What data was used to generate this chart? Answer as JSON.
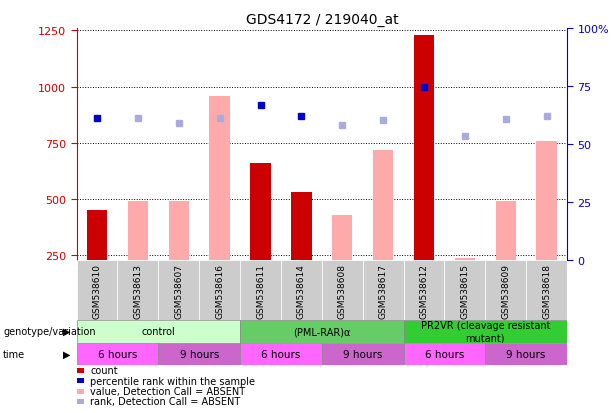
{
  "title": "GDS4172 / 219040_at",
  "samples": [
    "GSM538610",
    "GSM538613",
    "GSM538607",
    "GSM538616",
    "GSM538611",
    "GSM538614",
    "GSM538608",
    "GSM538617",
    "GSM538612",
    "GSM538615",
    "GSM538609",
    "GSM538618"
  ],
  "count_values": [
    450,
    null,
    null,
    null,
    660,
    530,
    null,
    null,
    1230,
    null,
    null,
    null
  ],
  "count_absent_values": [
    null,
    490,
    490,
    960,
    null,
    null,
    430,
    720,
    null,
    240,
    490,
    760
  ],
  "rank_present_values": [
    860,
    null,
    null,
    null,
    920,
    870,
    null,
    null,
    1000,
    null,
    null,
    null
  ],
  "rank_absent_values": [
    null,
    860,
    840,
    860,
    null,
    null,
    830,
    850,
    null,
    780,
    855,
    870
  ],
  "ylim_left": [
    230,
    1260
  ],
  "ylim_right": [
    0,
    100
  ],
  "left_ticks": [
    250,
    500,
    750,
    1000,
    1250
  ],
  "right_ticks": [
    0,
    25,
    50,
    75,
    100
  ],
  "right_tick_labels": [
    "0",
    "25",
    "50",
    "75",
    "100%"
  ],
  "genotype_groups": [
    {
      "label": "control",
      "color": "#ccffcc",
      "start": 0,
      "end": 3
    },
    {
      "label": "(PML-RAR)α",
      "color": "#66cc66",
      "start": 4,
      "end": 7
    },
    {
      "label": "PR2VR (cleavage resistant\nmutant)",
      "color": "#33cc33",
      "start": 8,
      "end": 11
    }
  ],
  "time_groups": [
    {
      "label": "6 hours",
      "color": "#ff66ff",
      "start": 0,
      "end": 1
    },
    {
      "label": "9 hours",
      "color": "#cc66cc",
      "start": 2,
      "end": 3
    },
    {
      "label": "6 hours",
      "color": "#ff66ff",
      "start": 4,
      "end": 5
    },
    {
      "label": "9 hours",
      "color": "#cc66cc",
      "start": 6,
      "end": 7
    },
    {
      "label": "6 hours",
      "color": "#ff66ff",
      "start": 8,
      "end": 9
    },
    {
      "label": "9 hours",
      "color": "#cc66cc",
      "start": 10,
      "end": 11
    }
  ],
  "bar_width": 0.5,
  "count_color": "#cc0000",
  "count_absent_color": "#ffaaaa",
  "rank_present_color": "#0000cc",
  "rank_absent_color": "#aaaadd",
  "bg_color": "#ffffff",
  "left_label_color": "#cc0000",
  "right_label_color": "#0000cc",
  "xtick_bg": "#cccccc",
  "legend_items": [
    {
      "color": "#cc0000",
      "label": "count"
    },
    {
      "color": "#0000cc",
      "label": "percentile rank within the sample"
    },
    {
      "color": "#ffaaaa",
      "label": "value, Detection Call = ABSENT"
    },
    {
      "color": "#aaaadd",
      "label": "rank, Detection Call = ABSENT"
    }
  ]
}
